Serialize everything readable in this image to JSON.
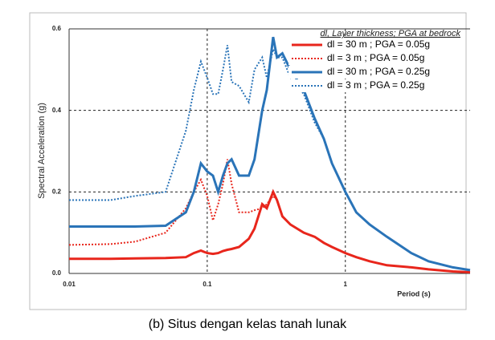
{
  "chart_data": {
    "type": "line",
    "caption": "(b) Situs dengan kelas tanah lunak",
    "y_label": "Spectral Acceleration (g)",
    "x_label": "Period (s)",
    "legend_title": "dl, Layer thickness; PGA at bedrock",
    "legend": "upper right",
    "x_log": true,
    "grid": true,
    "xlim": [
      0.01,
      8
    ],
    "xticks": [
      0.01,
      0.1,
      1
    ],
    "ylim": [
      0,
      0.6
    ],
    "yticks": [
      {
        "value": 0,
        "label": "0.0"
      },
      0.2,
      0.4,
      0.6
    ],
    "x": [
      0.01,
      0.02,
      0.03,
      0.05,
      0.07,
      0.08,
      0.09,
      0.1,
      0.11,
      0.12,
      0.13,
      0.14,
      0.15,
      0.17,
      0.2,
      0.22,
      0.25,
      0.27,
      0.3,
      0.32,
      0.35,
      0.4,
      0.5,
      0.6,
      0.7,
      0.8,
      1,
      1.2,
      1.5,
      2,
      3,
      4,
      6,
      8
    ],
    "series": [
      {
        "name": "dl = 30 m ; PGA = 0.05g",
        "color": "#e8261c",
        "dash": false,
        "values": [
          0.036,
          0.036,
          0.037,
          0.038,
          0.04,
          0.05,
          0.056,
          0.05,
          0.048,
          0.05,
          0.055,
          0.058,
          0.06,
          0.065,
          0.085,
          0.11,
          0.17,
          0.16,
          0.2,
          0.18,
          0.14,
          0.12,
          0.1,
          0.09,
          0.075,
          0.065,
          0.05,
          0.04,
          0.03,
          0.02,
          0.015,
          0.01,
          0.005,
          0.003
        ]
      },
      {
        "name": "dl = 3 m ; PGA = 0.05g",
        "color": "#e8261c",
        "dash": true,
        "values": [
          0.07,
          0.072,
          0.078,
          0.1,
          0.16,
          0.2,
          0.23,
          0.19,
          0.13,
          0.17,
          0.22,
          0.28,
          0.22,
          0.15,
          0.15,
          0.155,
          0.16,
          0.17,
          0.19,
          0.18,
          0.14,
          0.12,
          0.1,
          0.09,
          0.075,
          0.065,
          0.05,
          0.04,
          0.03,
          0.02,
          0.015,
          0.01,
          0.005,
          0.003
        ]
      },
      {
        "name": "dl = 30 m ; PGA = 0.25g",
        "color": "#2a74b8",
        "dash": false,
        "values": [
          0.115,
          0.115,
          0.115,
          0.117,
          0.15,
          0.2,
          0.27,
          0.25,
          0.24,
          0.2,
          0.24,
          0.27,
          0.28,
          0.24,
          0.24,
          0.28,
          0.4,
          0.45,
          0.58,
          0.53,
          0.54,
          0.5,
          0.45,
          0.38,
          0.33,
          0.27,
          0.2,
          0.15,
          0.12,
          0.09,
          0.05,
          0.03,
          0.015,
          0.008
        ]
      },
      {
        "name": "dl = 3 m ; PGA = 0.25g",
        "color": "#2a74b8",
        "dash": true,
        "values": [
          0.18,
          0.18,
          0.19,
          0.2,
          0.35,
          0.45,
          0.52,
          0.48,
          0.44,
          0.44,
          0.5,
          0.56,
          0.47,
          0.46,
          0.42,
          0.5,
          0.53,
          0.48,
          0.55,
          0.53,
          0.53,
          0.48,
          0.44,
          0.37,
          0.33,
          0.27,
          0.2,
          0.15,
          0.12,
          0.09,
          0.05,
          0.03,
          0.015,
          0.008
        ]
      }
    ]
  }
}
